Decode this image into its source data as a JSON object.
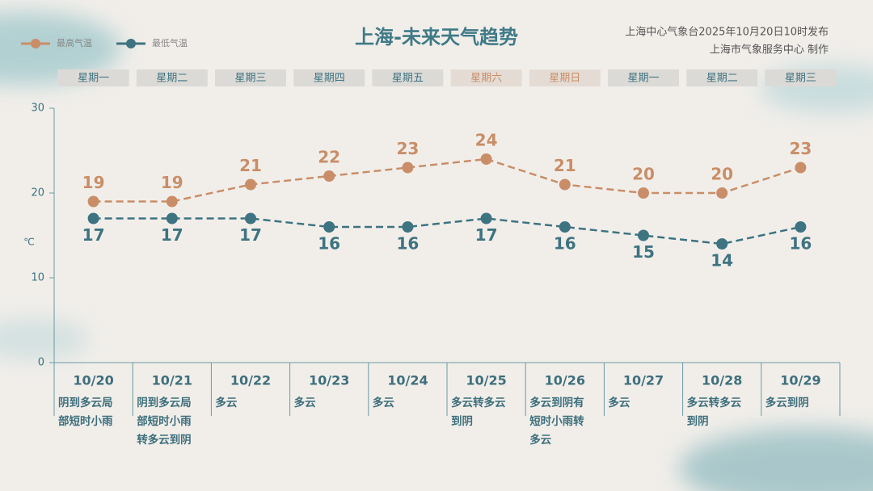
{
  "chart_data": {
    "type": "line",
    "title": "上海-未来天气趋势",
    "publisher": [
      "上海中心气象台2025年10月20日10时发布",
      "上海市气象服务中心 制作"
    ],
    "y_label": "℃",
    "weekdays": [
      "星期一",
      "星期二",
      "星期三",
      "星期四",
      "星期五",
      "星期六",
      "星期日",
      "星期一",
      "星期二",
      "星期三"
    ],
    "categories": [
      "10/20",
      "10/21",
      "10/22",
      "10/23",
      "10/24",
      "10/25",
      "10/26",
      "10/27",
      "10/28",
      "10/29"
    ],
    "weather": [
      "阴到多云局部短时小雨",
      "阴到多云局部短时小雨转多云到阴",
      "多云",
      "多云",
      "多云",
      "多云转多云到阴",
      "多云到阴有短时小雨转多云",
      "多云",
      "多云转多云到阴",
      "多云到阴"
    ],
    "series": [
      {
        "name": "最高气温",
        "color": "#c98e68",
        "values": [
          19,
          19,
          21,
          22,
          23,
          24,
          21,
          20,
          20,
          23
        ]
      },
      {
        "name": "最低气温",
        "color": "#3e7381",
        "values": [
          17,
          17,
          17,
          16,
          16,
          17,
          16,
          15,
          14,
          16
        ]
      }
    ],
    "ylim": [
      0,
      30
    ],
    "yticks": [
      0,
      10,
      20,
      30
    ]
  }
}
